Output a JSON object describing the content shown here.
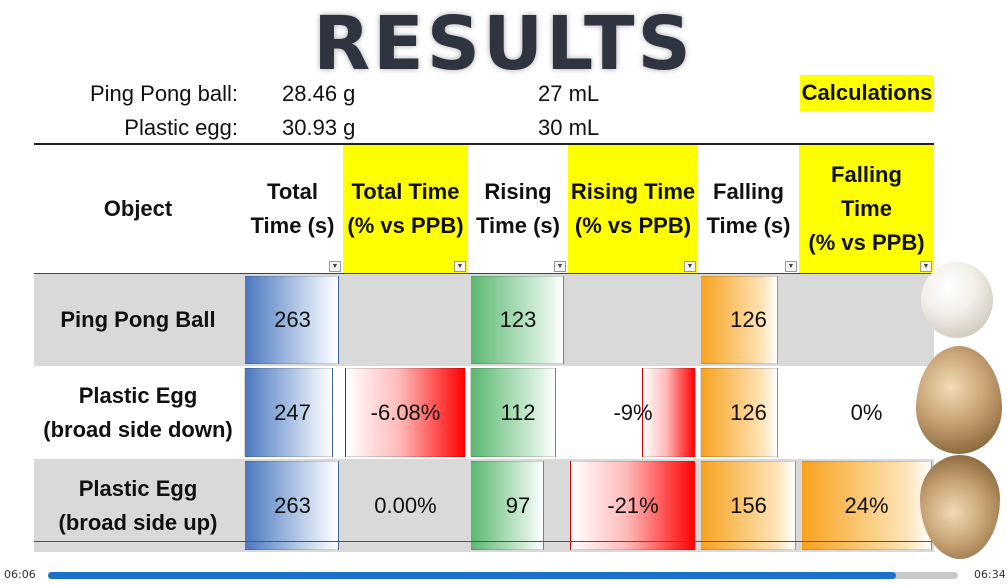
{
  "title": "RESULTS",
  "info": [
    {
      "label": "Ping Pong ball:",
      "mass": "28.46 g",
      "volume": "27 mL"
    },
    {
      "label": "Plastic egg:",
      "mass": "30.93 g",
      "volume": "30 mL"
    }
  ],
  "calculations_label": "Calculations",
  "table": {
    "headers": [
      {
        "lines": [
          "Object"
        ],
        "highlight": false
      },
      {
        "lines": [
          "Total",
          "Time (s)"
        ],
        "highlight": false
      },
      {
        "lines": [
          "Total Time",
          "(% vs PPB)"
        ],
        "highlight": true
      },
      {
        "lines": [
          "Rising",
          "Time (s)"
        ],
        "highlight": false
      },
      {
        "lines": [
          "Rising Time",
          "(% vs PPB)"
        ],
        "highlight": true
      },
      {
        "lines": [
          "Falling",
          "Time (s)"
        ],
        "highlight": false
      },
      {
        "lines": [
          "Falling",
          "Time",
          "(% vs PPB)"
        ],
        "highlight": true
      }
    ],
    "rows": [
      {
        "object": [
          "Ping Pong Ball"
        ],
        "total": "263",
        "total_pct": "",
        "rising": "123",
        "rising_pct": "",
        "falling": "126",
        "falling_pct": ""
      },
      {
        "object": [
          "Plastic Egg",
          "(broad side down)"
        ],
        "total": "247",
        "total_pct": "-6.08%",
        "rising": "112",
        "rising_pct": "-9%",
        "falling": "126",
        "falling_pct": "0%"
      },
      {
        "object": [
          "Plastic Egg",
          "(broad side up)"
        ],
        "total": "263",
        "total_pct": "0.00%",
        "rising": "97",
        "rising_pct": "-21%",
        "falling": "156",
        "falling_pct": "24%"
      }
    ]
  },
  "player": {
    "elapsed": "06:06",
    "duration": "06:34",
    "progress": 0.932
  },
  "colors": {
    "highlight": "#ffff00",
    "blue_bar": "#4a78c0",
    "green_bar": "#5ab870",
    "orange_bar": "#f7a21e",
    "red_bar": "#ff0000",
    "progress": "#1a73c8"
  }
}
